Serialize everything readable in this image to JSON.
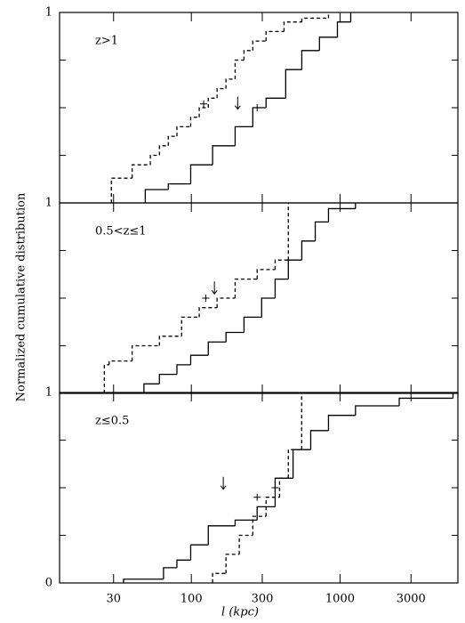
{
  "chart_data": [
    {
      "type": "step",
      "label": "z>1",
      "xlog": true,
      "xlim": [
        13,
        6200
      ],
      "xticks": [
        30,
        100,
        300,
        1000,
        3000
      ],
      "ylim": [
        0,
        1
      ],
      "yticks": [
        1
      ],
      "yminor": [
        0.25,
        0.5,
        0.75
      ],
      "series": [
        {
          "style": "dashed",
          "color": "#000000",
          "x": [
            29,
            40,
            53,
            61,
            70,
            80,
            99,
            113,
            130,
            149,
            171,
            197,
            226,
            259,
            318,
            420,
            553,
            836
          ],
          "values": [
            0.13,
            0.2,
            0.25,
            0.3,
            0.35,
            0.4,
            0.45,
            0.5,
            0.55,
            0.6,
            0.65,
            0.75,
            0.8,
            0.85,
            0.9,
            0.95,
            0.97,
            1.0
          ]
        },
        {
          "style": "solid",
          "color": "#000000",
          "x": [
            49,
            70,
            99,
            139,
            197,
            259,
            318,
            431,
            553,
            727,
            960,
            1180
          ],
          "values": [
            0.07,
            0.1,
            0.2,
            0.3,
            0.4,
            0.5,
            0.55,
            0.7,
            0.8,
            0.87,
            0.95,
            1.0
          ]
        }
      ],
      "arrow": {
        "x": 205,
        "y": 0.52
      },
      "markers": [
        {
          "x": 121,
          "y": 0.52
        },
        {
          "x": 277,
          "y": 0.5
        }
      ]
    },
    {
      "type": "step",
      "label": "0.5<z≤1",
      "xlog": true,
      "xlim": [
        13,
        6200
      ],
      "xticks": [
        30,
        100,
        300,
        1000,
        3000
      ],
      "ylim": [
        0,
        1
      ],
      "yticks": [
        1
      ],
      "yminor": [
        0.25,
        0.5,
        0.75
      ],
      "series": [
        {
          "style": "dashed",
          "color": "#000000",
          "x": [
            26,
            28,
            40,
            61,
            86,
            113,
            149,
            197,
            277,
            366,
            449
          ],
          "values": [
            0.15,
            0.17,
            0.25,
            0.3,
            0.4,
            0.45,
            0.5,
            0.6,
            0.65,
            0.7,
            1.0
          ]
        },
        {
          "style": "solid",
          "color": "#000000",
          "x": [
            48,
            61,
            80,
            99,
            130,
            171,
            226,
            297,
            366,
            449,
            553,
            681,
            836,
            1270
          ],
          "values": [
            0.05,
            0.1,
            0.15,
            0.2,
            0.27,
            0.32,
            0.4,
            0.5,
            0.6,
            0.7,
            0.8,
            0.9,
            0.97,
            1.0
          ]
        }
      ],
      "arrow": {
        "x": 143,
        "y": 0.55
      },
      "markers": [
        {
          "x": 125,
          "y": 0.5
        }
      ]
    },
    {
      "type": "step",
      "label": "z≤0.5",
      "xlog": true,
      "xlim": [
        13,
        6200
      ],
      "xticks": [
        30,
        100,
        300,
        1000,
        3000
      ],
      "ylim": [
        0,
        1
      ],
      "yticks": [
        0,
        1
      ],
      "yminor": [
        0.25,
        0.5,
        0.75
      ],
      "series": [
        {
          "style": "dashed",
          "color": "#000000",
          "x": [
            139,
            171,
            210,
            259,
            318,
            392,
            449,
            552
          ],
          "values": [
            0.05,
            0.15,
            0.25,
            0.35,
            0.45,
            0.55,
            0.7,
            1.0
          ]
        },
        {
          "style": "solid",
          "color": "#000000",
          "x": [
            35,
            65,
            80,
            99,
            130,
            197,
            277,
            366,
            483,
            635,
            836,
            1270,
            2500,
            5750
          ],
          "values": [
            0.02,
            0.08,
            0.12,
            0.2,
            0.3,
            0.33,
            0.4,
            0.55,
            0.7,
            0.8,
            0.88,
            0.93,
            0.97,
            1.0
          ]
        }
      ],
      "arrow": {
        "x": 164,
        "y": 0.52
      },
      "markers": [
        {
          "x": 277,
          "y": 0.45
        },
        {
          "x": 366,
          "y": 0.5
        }
      ]
    }
  ],
  "axis_labels": {
    "x": "l (kpc)",
    "y": "Normalized cumulative distribution"
  }
}
